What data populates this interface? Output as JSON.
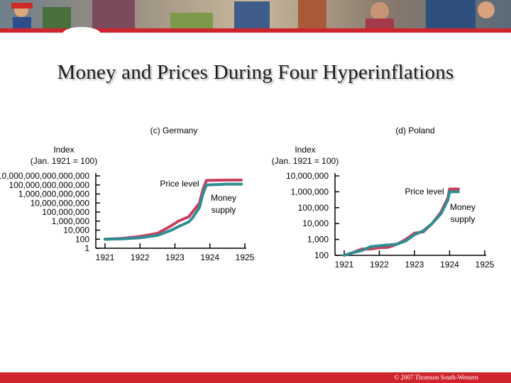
{
  "slide": {
    "title": "Money and Prices During Four Hyperinflations",
    "copyright": "© 2007 Thomson South-Western"
  },
  "colors": {
    "banner_stripe": "#d0242c",
    "footer": "#d0242c",
    "price_level": "#c83f5e",
    "money_supply": "#2f8d93",
    "axis": "#000000"
  },
  "chart_data": [
    {
      "type": "line",
      "title": "(c) Germany",
      "ylabel": "Index\n(Jan. 1921 = 100)",
      "yscale": "log",
      "ylim": [
        1,
        1e+17
      ],
      "yticks": [
        1,
        100,
        10000,
        1000000,
        100000000,
        10000000000,
        1000000000000,
        100000000000000,
        10000000000000000
      ],
      "ytick_labels": [
        "1",
        "100",
        "10,000",
        "1,000,000",
        "100,000,000",
        "10,000,000,000",
        "1,000,000,000,000",
        "100,000,000,000,000",
        "10,000,000,000,000,000"
      ],
      "xlim": [
        1921,
        1925
      ],
      "xticks": [
        1921,
        1922,
        1923,
        1924,
        1925
      ],
      "xtick_labels": [
        "1921",
        "1922",
        "1923",
        "1924",
        "1925"
      ],
      "series": [
        {
          "name": "Price level",
          "x": [
            1921.0,
            1921.5,
            1922.0,
            1922.5,
            1922.9,
            1923.1,
            1923.4,
            1923.5,
            1923.7,
            1923.8,
            1923.9,
            1924.5,
            1924.9
          ],
          "y": [
            100,
            150,
            400,
            2000,
            100000,
            1000000,
            10000000,
            100000000,
            10000000000.0,
            10000000000000.0,
            1000000000000000.0,
            1200000000000000.0,
            1200000000000000.0
          ]
        },
        {
          "name": "Money supply",
          "x": [
            1921.0,
            1921.5,
            1922.0,
            1922.5,
            1922.9,
            1923.1,
            1923.4,
            1923.5,
            1923.7,
            1923.8,
            1923.9,
            1924.5,
            1924.9
          ],
          "y": [
            100,
            120,
            200,
            700,
            10000,
            60000,
            700000,
            5000000,
            1000000000.0,
            1000000000000.0,
            100000000000000.0,
            150000000000000.0,
            150000000000000.0
          ]
        }
      ]
    },
    {
      "type": "line",
      "title": "(d) Poland",
      "ylabel": "Index\n(Jan. 1921 = 100)",
      "yscale": "log",
      "ylim": [
        100,
        10000000
      ],
      "yticks": [
        100,
        1000,
        10000,
        100000,
        1000000,
        10000000
      ],
      "ytick_labels": [
        "100",
        "1,000",
        "10,000",
        "100,000",
        "1,000,000",
        "10,000,000"
      ],
      "xlim": [
        1921,
        1925
      ],
      "xticks": [
        1921,
        1922,
        1923,
        1924,
        1925
      ],
      "xtick_labels": [
        "1921",
        "1922",
        "1923",
        "1924",
        "1925"
      ],
      "series": [
        {
          "name": "Price level",
          "x": [
            1921.0,
            1921.25,
            1921.5,
            1921.75,
            1922.0,
            1922.25,
            1922.5,
            1922.75,
            1923.0,
            1923.25,
            1923.5,
            1923.75,
            1923.95,
            1924.0,
            1924.25
          ],
          "y": [
            100,
            150,
            250,
            250,
            300,
            320,
            500,
            1000,
            2500,
            3000,
            10000,
            50000,
            400000,
            1500000,
            1500000
          ]
        },
        {
          "name": "Money supply",
          "x": [
            1921.0,
            1921.25,
            1921.5,
            1921.75,
            1922.0,
            1922.25,
            1922.5,
            1922.75,
            1923.0,
            1923.25,
            1923.5,
            1923.75,
            1923.95,
            1924.0,
            1924.25
          ],
          "y": [
            100,
            150,
            200,
            350,
            400,
            450,
            500,
            800,
            2000,
            3500,
            10000,
            40000,
            300000,
            1000000,
            1000000
          ]
        }
      ]
    }
  ]
}
